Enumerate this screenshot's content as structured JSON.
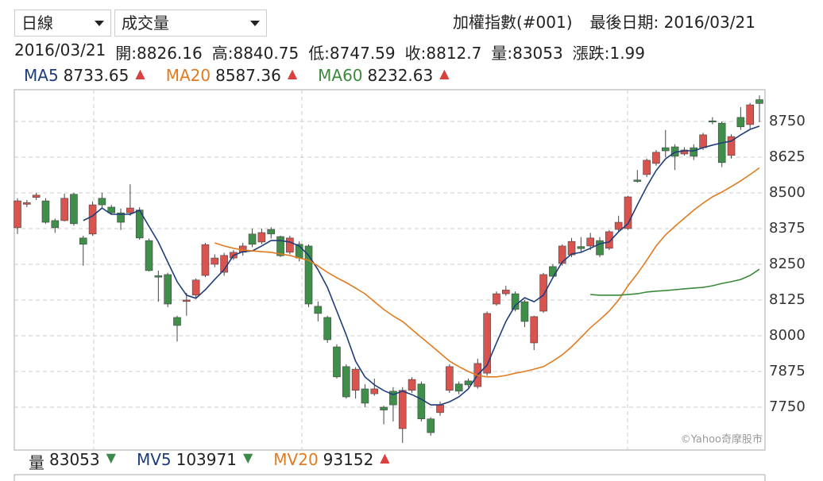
{
  "controls": {
    "period": "日線",
    "indicator": "成交量"
  },
  "header": {
    "index_name": "加權指數(#001)",
    "last_date": "最後日期: 2016/03/21",
    "info": [
      "2016/03/21",
      "開:8826.16",
      "高:8840.75",
      "低:8747.59",
      "收:8812.7",
      "量:83053",
      "漲跌:1.99"
    ]
  },
  "volume_legend": [
    {
      "name": "量",
      "value": "83053",
      "arrow": "▼",
      "color": "#222222",
      "arrow_color": "#3c8a4a"
    },
    {
      "name": "MV5",
      "value": "103971",
      "arrow": "▼",
      "color": "#1f3d7a",
      "arrow_color": "#3c8a4a"
    },
    {
      "name": "MV20",
      "value": "93152",
      "arrow": "▲",
      "color": "#e07b20",
      "arrow_color": "#d9413f"
    }
  ],
  "watermark": "©Yahoo奇摩股市",
  "chart_data": {
    "type": "candlestick",
    "up_color": "#d9534f",
    "down_color": "#3f8f4a",
    "open": [
      8378,
      8460,
      8484,
      8472,
      8403,
      8403,
      8495,
      8342,
      8356,
      8481,
      8450,
      8430,
      8430,
      8440,
      8333,
      8210,
      8214,
      8064,
      8120,
      8142,
      8211,
      8250,
      8222,
      8272,
      8292,
      8356,
      8328,
      8372,
      8347,
      8292,
      8320,
      8314,
      8103,
      8064,
      7961,
      7892,
      7809,
      7814,
      7797,
      7750,
      7806,
      7675,
      7809,
      7831,
      7709,
      7731,
      7809,
      7831,
      7842,
      7822,
      7869,
      8111,
      8147,
      8147,
      8119,
      7975,
      8086,
      8242,
      8253,
      8283,
      8312,
      8314,
      8333,
      8306,
      8372,
      8375,
      8545,
      8564,
      8603,
      8658,
      8661,
      8636,
      8658,
      8658,
      8752,
      8744,
      8631,
      8764,
      8739,
      8826.16
    ],
    "high": [
      8481,
      8475,
      8500,
      8481,
      8410,
      8497,
      8500,
      8350,
      8470,
      8500,
      8458,
      8445,
      8530,
      8450,
      8340,
      8228,
      8220,
      8070,
      8150,
      8200,
      8325,
      8285,
      8290,
      8300,
      8325,
      8375,
      8375,
      8380,
      8350,
      8350,
      8330,
      8320,
      8120,
      8070,
      7970,
      7900,
      7890,
      7830,
      7850,
      7755,
      7820,
      7820,
      7855,
      7840,
      7715,
      7770,
      7900,
      7840,
      7850,
      7920,
      8085,
      8155,
      8175,
      8155,
      8125,
      8070,
      8220,
      8250,
      8320,
      8342,
      8345,
      8360,
      8345,
      8370,
      8420,
      8490,
      8580,
      8620,
      8650,
      8720,
      8670,
      8660,
      8670,
      8710,
      8765,
      8750,
      8705,
      8800,
      8815,
      8840.75
    ],
    "low": [
      8356,
      8450,
      8475,
      8392,
      8360,
      8400,
      8385,
      8245,
      8350,
      8445,
      8425,
      8370,
      8420,
      8336,
      8225,
      8119,
      8100,
      7980,
      8070,
      8130,
      8205,
      8240,
      8210,
      8265,
      8280,
      8310,
      8320,
      8340,
      8275,
      8285,
      8260,
      8100,
      8050,
      7975,
      7850,
      7780,
      7780,
      7750,
      7790,
      7690,
      7700,
      7625,
      7800,
      7700,
      7650,
      7720,
      7800,
      7795,
      7820,
      7815,
      7860,
      8105,
      8140,
      8085,
      8030,
      7950,
      8080,
      8200,
      8245,
      8275,
      8290,
      8300,
      8275,
      8300,
      8365,
      8370,
      8536,
      8555,
      8595,
      8625,
      8580,
      8630,
      8615,
      8650,
      8740,
      8590,
      8620,
      8720,
      8725,
      8747.59
    ],
    "close": [
      8472,
      8466,
      8492,
      8397,
      8378,
      8481,
      8392,
      8320,
      8458,
      8458,
      8430,
      8397,
      8447,
      8342,
      8228,
      8205,
      8111,
      8036,
      8125,
      8195,
      8319,
      8272,
      8281,
      8292,
      8314,
      8320,
      8361,
      8356,
      8280,
      8342,
      8272,
      8111,
      8078,
      7986,
      7856,
      7786,
      7883,
      7764,
      7814,
      7740,
      7758,
      7809,
      7847,
      7709,
      7661,
      7758,
      7892,
      7806,
      7828,
      7903,
      8078,
      8147,
      8160,
      8092,
      8050,
      8067,
      8214,
      8208,
      8314,
      8330,
      8305,
      8342,
      8283,
      8364,
      8397,
      8486,
      8540,
      8614,
      8642,
      8647,
      8628,
      8650,
      8628,
      8703,
      8748,
      8606,
      8697,
      8731,
      8808,
      8812.7
    ],
    "series": [
      {
        "name": "MA5",
        "color": "#1f3d7a",
        "last": 8733.65,
        "values": [
          null,
          null,
          null,
          null,
          null,
          null,
          null,
          8403,
          8419,
          8447,
          8425,
          8425,
          8425,
          8439,
          8383,
          8328,
          8258,
          8189,
          8142,
          8131,
          8161,
          8197,
          8231,
          8281,
          8294,
          8297,
          8314,
          8333,
          8333,
          8328,
          8314,
          8281,
          8231,
          8169,
          8086,
          8003,
          7911,
          7856,
          7828,
          7808,
          7794,
          7806,
          7794,
          7778,
          7758,
          7758,
          7769,
          7786,
          7814,
          7864,
          7897,
          7975,
          8050,
          8106,
          8133,
          8119,
          8142,
          8203,
          8258,
          8286,
          8292,
          8306,
          8322,
          8328,
          8364,
          8392,
          8458,
          8522,
          8578,
          8619,
          8642,
          8647,
          8647,
          8658,
          8667,
          8675,
          8681,
          8703,
          8722,
          8733.65
        ]
      },
      {
        "name": "MA20",
        "color": "#e07b20",
        "last": 8587.36,
        "values": [
          null,
          null,
          null,
          null,
          null,
          null,
          null,
          null,
          null,
          null,
          null,
          null,
          null,
          null,
          null,
          null,
          null,
          null,
          null,
          null,
          null,
          8325,
          8314,
          8306,
          8300,
          8297,
          8294,
          8292,
          8286,
          8281,
          8272,
          8264,
          8244,
          8222,
          8203,
          8186,
          8167,
          8147,
          8119,
          8092,
          8069,
          8050,
          8022,
          7994,
          7967,
          7939,
          7911,
          7892,
          7875,
          7861,
          7856,
          7856,
          7861,
          7869,
          7875,
          7883,
          7892,
          7911,
          7933,
          7961,
          7994,
          8028,
          8056,
          8086,
          8125,
          8175,
          8217,
          8264,
          8314,
          8353,
          8383,
          8411,
          8439,
          8464,
          8486,
          8503,
          8522,
          8542,
          8564,
          8587.36
        ]
      },
      {
        "name": "MA60",
        "color": "#3a8a3a",
        "last": 8232.63,
        "values": [
          null,
          null,
          null,
          null,
          null,
          null,
          null,
          null,
          null,
          null,
          null,
          null,
          null,
          null,
          null,
          null,
          null,
          null,
          null,
          null,
          null,
          null,
          null,
          null,
          null,
          null,
          null,
          null,
          null,
          null,
          null,
          null,
          null,
          null,
          null,
          null,
          null,
          null,
          null,
          null,
          null,
          null,
          null,
          null,
          null,
          null,
          null,
          null,
          null,
          null,
          null,
          null,
          null,
          null,
          null,
          null,
          null,
          null,
          null,
          null,
          null,
          8144,
          8142,
          8142,
          8142,
          8144,
          8147,
          8153,
          8156,
          8158,
          8161,
          8164,
          8167,
          8169,
          8175,
          8183,
          8189,
          8197,
          8211,
          8232.63
        ]
      }
    ],
    "ylim": [
      7600,
      8861
    ],
    "yticks": [
      7750,
      7875,
      8000,
      8125,
      8250,
      8375,
      8500,
      8625,
      8750
    ],
    "grid": true,
    "legend_arrow": "▲",
    "legend_arrow_color": "#d9413f"
  }
}
